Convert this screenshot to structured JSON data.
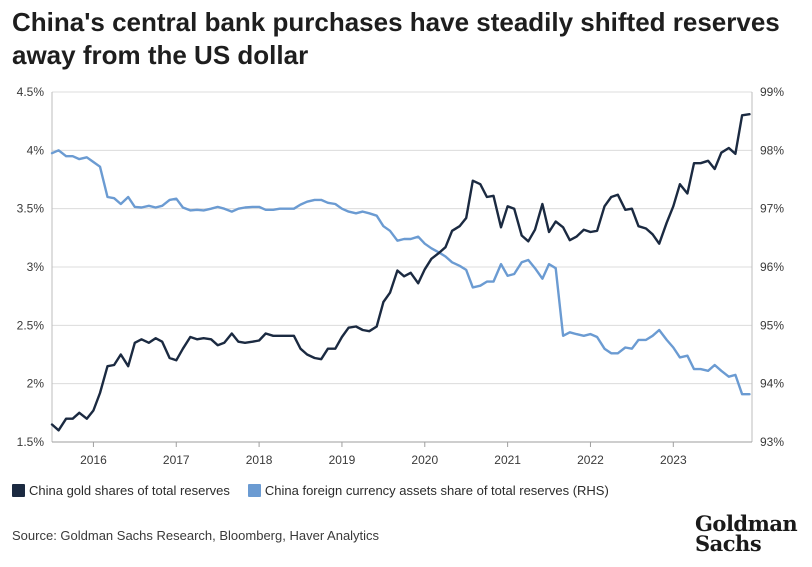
{
  "title": "China's central bank purchases have steadily shifted reserves away from the US dollar",
  "legend": [
    {
      "label": "China gold shares of total reserves",
      "color": "#1b2a41"
    },
    {
      "label": "China foreign currency assets share of total reserves (RHS)",
      "color": "#6b9bd2"
    }
  ],
  "source": "Source: Goldman Sachs Research, Bloomberg, Haver Analytics",
  "logo": {
    "line1": "Goldman",
    "line2": "Sachs"
  },
  "chart_data": {
    "type": "line",
    "x_axis": {
      "range": [
        2015.5,
        2023.95
      ],
      "ticks": [
        "2016",
        "2017",
        "2018",
        "2019",
        "2020",
        "2021",
        "2022",
        "2023"
      ],
      "tick_values": [
        2016,
        2017,
        2018,
        2019,
        2020,
        2021,
        2022,
        2023
      ]
    },
    "y_left": {
      "range": [
        1.5,
        4.5
      ],
      "ticks": [
        "1.5%",
        "2%",
        "2.5%",
        "3%",
        "3.5%",
        "4%",
        "4.5%"
      ],
      "tick_values": [
        1.5,
        2,
        2.5,
        3,
        3.5,
        4,
        4.5
      ]
    },
    "y_right": {
      "range": [
        93,
        99
      ],
      "ticks": [
        "93%",
        "94%",
        "95%",
        "96%",
        "97%",
        "98%",
        "99%"
      ],
      "tick_values": [
        93,
        94,
        95,
        96,
        97,
        98,
        99
      ]
    },
    "grid": "horizontal",
    "legend_position": "bottom-left",
    "series": [
      {
        "name": "China gold shares of total reserves",
        "axis": "left",
        "color": "#1b2a41",
        "x": [
          2015.5,
          2015.58,
          2015.67,
          2015.75,
          2015.83,
          2015.92,
          2016.0,
          2016.08,
          2016.17,
          2016.25,
          2016.33,
          2016.42,
          2016.5,
          2016.58,
          2016.67,
          2016.75,
          2016.83,
          2016.92,
          2017.0,
          2017.08,
          2017.17,
          2017.25,
          2017.33,
          2017.42,
          2017.5,
          2017.58,
          2017.67,
          2017.75,
          2017.83,
          2017.92,
          2018.0,
          2018.08,
          2018.17,
          2018.25,
          2018.33,
          2018.42,
          2018.5,
          2018.58,
          2018.67,
          2018.75,
          2018.83,
          2018.92,
          2019.0,
          2019.08,
          2019.17,
          2019.25,
          2019.33,
          2019.42,
          2019.5,
          2019.58,
          2019.67,
          2019.75,
          2019.83,
          2019.92,
          2020.0,
          2020.08,
          2020.17,
          2020.25,
          2020.33,
          2020.42,
          2020.5,
          2020.58,
          2020.67,
          2020.75,
          2020.83,
          2020.92,
          2021.0,
          2021.08,
          2021.17,
          2021.25,
          2021.33,
          2021.42,
          2021.5,
          2021.58,
          2021.67,
          2021.75,
          2021.83,
          2021.92,
          2022.0,
          2022.08,
          2022.17,
          2022.25,
          2022.33,
          2022.42,
          2022.5,
          2022.58,
          2022.67,
          2022.75,
          2022.83,
          2022.92,
          2023.0,
          2023.08,
          2023.17,
          2023.25,
          2023.33,
          2023.42,
          2023.5,
          2023.58,
          2023.67,
          2023.75,
          2023.83,
          2023.92
        ],
        "values": [
          1.65,
          1.6,
          1.7,
          1.7,
          1.75,
          1.7,
          1.77,
          1.92,
          2.15,
          2.16,
          2.25,
          2.15,
          2.35,
          2.38,
          2.35,
          2.39,
          2.36,
          2.22,
          2.2,
          2.3,
          2.4,
          2.38,
          2.39,
          2.38,
          2.33,
          2.35,
          2.43,
          2.36,
          2.35,
          2.36,
          2.37,
          2.43,
          2.41,
          2.41,
          2.41,
          2.41,
          2.3,
          2.25,
          2.22,
          2.21,
          2.3,
          2.3,
          2.4,
          2.48,
          2.49,
          2.46,
          2.45,
          2.49,
          2.7,
          2.78,
          2.97,
          2.92,
          2.95,
          2.86,
          2.98,
          3.07,
          3.12,
          3.17,
          3.31,
          3.35,
          3.42,
          3.74,
          3.71,
          3.6,
          3.61,
          3.34,
          3.52,
          3.5,
          3.27,
          3.22,
          3.32,
          3.54,
          3.3,
          3.39,
          3.34,
          3.23,
          3.26,
          3.32,
          3.3,
          3.31,
          3.52,
          3.6,
          3.62,
          3.49,
          3.5,
          3.35,
          3.33,
          3.28,
          3.2,
          3.38,
          3.52,
          3.71,
          3.63,
          3.89,
          3.89,
          3.91,
          3.84,
          3.98,
          4.02,
          3.97,
          4.3,
          4.31
        ]
      },
      {
        "name": "China foreign currency assets share of total reserves (RHS)",
        "axis": "right",
        "color": "#6b9bd2",
        "x": [
          2015.5,
          2015.58,
          2015.67,
          2015.75,
          2015.83,
          2015.92,
          2016.0,
          2016.08,
          2016.17,
          2016.25,
          2016.33,
          2016.42,
          2016.5,
          2016.58,
          2016.67,
          2016.75,
          2016.83,
          2016.92,
          2017.0,
          2017.08,
          2017.17,
          2017.25,
          2017.33,
          2017.42,
          2017.5,
          2017.58,
          2017.67,
          2017.75,
          2017.83,
          2017.92,
          2018.0,
          2018.08,
          2018.17,
          2018.25,
          2018.33,
          2018.42,
          2018.5,
          2018.58,
          2018.67,
          2018.75,
          2018.83,
          2018.92,
          2019.0,
          2019.08,
          2019.17,
          2019.25,
          2019.33,
          2019.42,
          2019.5,
          2019.58,
          2019.67,
          2019.75,
          2019.83,
          2019.92,
          2020.0,
          2020.08,
          2020.17,
          2020.25,
          2020.33,
          2020.42,
          2020.5,
          2020.58,
          2020.67,
          2020.75,
          2020.83,
          2020.92,
          2021.0,
          2021.08,
          2021.17,
          2021.25,
          2021.33,
          2021.42,
          2021.5,
          2021.58,
          2021.67,
          2021.75,
          2021.83,
          2021.92,
          2022.0,
          2022.08,
          2022.17,
          2022.25,
          2022.33,
          2022.42,
          2022.5,
          2022.58,
          2022.67,
          2022.75,
          2022.83,
          2022.92,
          2023.0,
          2023.08,
          2023.17,
          2023.25,
          2023.33,
          2023.42,
          2023.5,
          2023.58,
          2023.67,
          2023.75,
          2023.83,
          2023.92
        ],
        "values": [
          97.95,
          98.0,
          97.9,
          97.9,
          97.85,
          97.88,
          97.8,
          97.72,
          97.2,
          97.18,
          97.08,
          97.2,
          97.03,
          97.02,
          97.05,
          97.02,
          97.05,
          97.15,
          97.17,
          97.02,
          96.97,
          96.98,
          96.97,
          97.0,
          97.03,
          97.0,
          96.95,
          97.0,
          97.02,
          97.03,
          97.03,
          96.98,
          96.98,
          97.0,
          97.0,
          97.0,
          97.07,
          97.12,
          97.15,
          97.15,
          97.1,
          97.08,
          97.0,
          96.95,
          96.92,
          96.95,
          96.92,
          96.88,
          96.7,
          96.62,
          96.45,
          96.48,
          96.48,
          96.52,
          96.4,
          96.32,
          96.25,
          96.18,
          96.08,
          96.02,
          95.95,
          95.65,
          95.68,
          95.75,
          95.75,
          96.05,
          95.85,
          95.88,
          96.08,
          96.12,
          95.98,
          95.8,
          96.05,
          95.98,
          94.82,
          94.88,
          94.85,
          94.82,
          94.85,
          94.8,
          94.6,
          94.52,
          94.52,
          94.62,
          94.6,
          94.75,
          94.75,
          94.82,
          94.92,
          94.75,
          94.62,
          94.45,
          94.48,
          94.25,
          94.25,
          94.22,
          94.32,
          94.22,
          94.12,
          94.15,
          93.82,
          93.82
        ]
      }
    ]
  }
}
